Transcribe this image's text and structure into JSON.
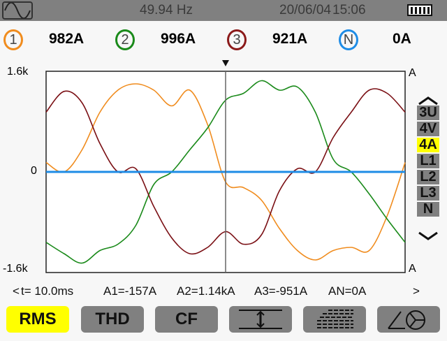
{
  "status_bar": {
    "frequency": "49.94 Hz",
    "date": "20/06/04",
    "time": "15:06",
    "mode_icon": "sine-wave-icon",
    "battery_icon": "battery-full-icon"
  },
  "measurements": [
    {
      "channel": "1",
      "value": "982A",
      "color": "#f08c1e"
    },
    {
      "channel": "2",
      "value": "996A",
      "color": "#1a8a1a"
    },
    {
      "channel": "3",
      "value": "921A",
      "color": "#8b1a1a"
    },
    {
      "channel": "N",
      "value": "0A",
      "color": "#1e8ce6"
    }
  ],
  "side_menu": {
    "items": [
      "3U",
      "4V",
      "4A",
      "L1",
      "L2",
      "L3",
      "N"
    ],
    "selected": "4A",
    "highlight_color": "#ffff00"
  },
  "cursor_readout": {
    "prev": "<",
    "time": "t= 10.0ms",
    "a1": "A1=-157A",
    "a2": "A2=1.14kA",
    "a3": "A3=-951A",
    "an": "AN=0A",
    "next": ">"
  },
  "buttons": [
    {
      "label": "RMS",
      "selected": true
    },
    {
      "label": "THD"
    },
    {
      "label": "CF"
    },
    {
      "icon": "scale-icon"
    },
    {
      "icon": "harmonics-icon"
    },
    {
      "icon": "phasor-icon"
    }
  ],
  "chart_data": {
    "type": "line",
    "y_ticks": [
      "1.6k",
      "0",
      "-1.6k"
    ],
    "y_unit_top": "A",
    "y_unit_bottom": "A",
    "ylim": [
      -1.6,
      1.6
    ],
    "xlim_ms": [
      0,
      20
    ],
    "cursor_ms": 10.0,
    "x_ms": [
      0,
      1,
      2,
      3,
      4,
      5,
      6,
      7,
      8,
      9,
      10,
      11,
      12,
      13,
      14,
      15,
      16,
      17,
      18,
      19,
      20
    ],
    "series": [
      {
        "channel": "1",
        "color": "#f08c1e",
        "values": [
          0.15,
          0.0,
          0.35,
          0.95,
          1.3,
          1.4,
          1.3,
          1.05,
          1.3,
          0.75,
          -0.16,
          -0.25,
          -0.45,
          -0.9,
          -1.25,
          -1.4,
          -1.25,
          -1.2,
          -1.25,
          -0.7,
          0.15
        ]
      },
      {
        "channel": "2",
        "color": "#1a8a1a",
        "values": [
          -1.12,
          -1.3,
          -1.45,
          -1.25,
          -1.15,
          -0.85,
          -0.2,
          0.0,
          0.35,
          0.7,
          1.14,
          1.25,
          1.45,
          1.3,
          1.35,
          0.95,
          0.2,
          0.0,
          -0.35,
          -0.75,
          -1.12
        ]
      },
      {
        "channel": "3",
        "color": "#7a0f14",
        "values": [
          0.95,
          1.28,
          1.1,
          0.45,
          0.0,
          0.05,
          -0.55,
          -1.05,
          -1.3,
          -1.2,
          -0.95,
          -1.15,
          -1.0,
          -0.3,
          0.05,
          0.0,
          0.55,
          0.95,
          1.3,
          1.25,
          0.95
        ]
      },
      {
        "channel": "N",
        "color": "#1e8ce6",
        "values": [
          0,
          0,
          0,
          0,
          0,
          0,
          0,
          0,
          0,
          0,
          0,
          0,
          0,
          0,
          0,
          0,
          0,
          0,
          0,
          0,
          0
        ]
      }
    ]
  }
}
